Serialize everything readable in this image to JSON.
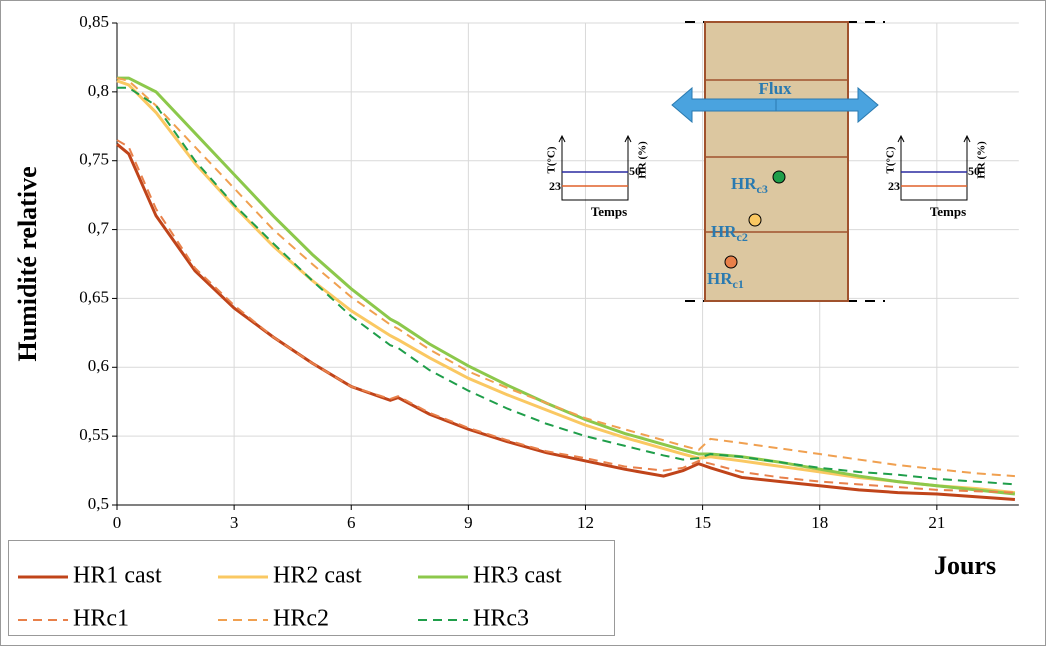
{
  "chart_data": {
    "type": "line",
    "x_label": "Jours",
    "y_label": "Humidité relative",
    "xlim": [
      0,
      23.1
    ],
    "ylim": [
      0.5,
      0.85
    ],
    "xticks": [
      0,
      3,
      6,
      9,
      12,
      15,
      18,
      21
    ],
    "yticks": [
      {
        "value": 0.5,
        "label": "0,5"
      },
      {
        "value": 0.55,
        "label": "0,55"
      },
      {
        "value": 0.6,
        "label": "0,6"
      },
      {
        "value": 0.65,
        "label": "0,65"
      },
      {
        "value": 0.7,
        "label": "0,7"
      },
      {
        "value": 0.75,
        "label": "0,75"
      },
      {
        "value": 0.8,
        "label": "0,8"
      },
      {
        "value": 0.85,
        "label": "0,85"
      }
    ],
    "grid": true,
    "x": [
      0,
      0.3,
      1,
      2,
      3,
      4,
      5,
      6,
      7,
      7.2,
      8,
      9,
      10,
      11,
      12,
      13,
      14,
      14.5,
      14.9,
      15.2,
      16,
      17,
      18,
      19,
      20,
      21,
      22,
      23
    ],
    "series": [
      {
        "name": "HR1 cast",
        "color": "#c0441a",
        "dashed": false,
        "values": [
          0.762,
          0.755,
          0.71,
          0.67,
          0.643,
          0.622,
          0.603,
          0.586,
          0.576,
          0.578,
          0.566,
          0.555,
          0.546,
          0.538,
          0.532,
          0.526,
          0.521,
          0.525,
          0.53,
          0.527,
          0.52,
          0.517,
          0.514,
          0.511,
          0.509,
          0.508,
          0.506,
          0.504
        ]
      },
      {
        "name": "HR2 cast",
        "color": "#fac862",
        "dashed": false,
        "values": [
          0.808,
          0.805,
          0.785,
          0.748,
          0.717,
          0.688,
          0.663,
          0.641,
          0.623,
          0.62,
          0.607,
          0.592,
          0.58,
          0.569,
          0.558,
          0.549,
          0.541,
          0.537,
          0.534,
          0.535,
          0.532,
          0.528,
          0.524,
          0.52,
          0.517,
          0.514,
          0.512,
          0.509
        ]
      },
      {
        "name": "HR3 cast",
        "color": "#8cc84b",
        "dashed": false,
        "values": [
          0.81,
          0.81,
          0.8,
          0.77,
          0.74,
          0.71,
          0.682,
          0.657,
          0.635,
          0.632,
          0.617,
          0.601,
          0.587,
          0.574,
          0.562,
          0.552,
          0.544,
          0.54,
          0.537,
          0.537,
          0.535,
          0.531,
          0.526,
          0.521,
          0.517,
          0.514,
          0.511,
          0.508
        ]
      },
      {
        "name": "HRc1",
        "color": "#e8804a",
        "dashed": true,
        "values": [
          0.765,
          0.76,
          0.715,
          0.672,
          0.645,
          0.622,
          0.603,
          0.586,
          0.577,
          0.579,
          0.567,
          0.556,
          0.547,
          0.539,
          0.534,
          0.528,
          0.525,
          0.527,
          0.532,
          0.53,
          0.524,
          0.52,
          0.517,
          0.515,
          0.513,
          0.511,
          0.51,
          0.509
        ]
      },
      {
        "name": "HRc2",
        "color": "#f0a050",
        "dashed": true,
        "values": [
          0.81,
          0.808,
          0.79,
          0.76,
          0.73,
          0.7,
          0.675,
          0.651,
          0.631,
          0.628,
          0.613,
          0.597,
          0.585,
          0.574,
          0.563,
          0.555,
          0.547,
          0.543,
          0.54,
          0.548,
          0.545,
          0.541,
          0.537,
          0.533,
          0.529,
          0.526,
          0.523,
          0.521
        ]
      },
      {
        "name": "HRc3",
        "color": "#1f9e4a",
        "dashed": true,
        "values": [
          0.803,
          0.803,
          0.79,
          0.75,
          0.718,
          0.69,
          0.663,
          0.637,
          0.616,
          0.614,
          0.598,
          0.583,
          0.57,
          0.559,
          0.55,
          0.543,
          0.536,
          0.533,
          0.534,
          0.537,
          0.535,
          0.531,
          0.527,
          0.524,
          0.522,
          0.519,
          0.517,
          0.515
        ]
      }
    ],
    "inset": {
      "flux": "Flux",
      "sensors": [
        {
          "base": "HR",
          "sub": "c3"
        },
        {
          "base": "HR",
          "sub": "c2"
        },
        {
          "base": "HR",
          "sub": "c1"
        }
      ],
      "temp_axis": "T(°C)",
      "hr_axis": "HR (%)",
      "hr_level": "50",
      "temp_level": "23",
      "time_axis": "Temps"
    }
  }
}
